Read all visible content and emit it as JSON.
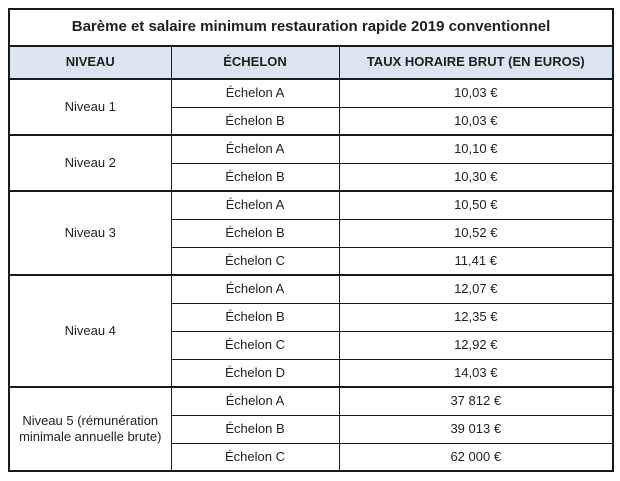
{
  "table": {
    "title": "Barème et salaire minimum restauration rapide 2019 conventionnel",
    "header": {
      "niveau": "NIVEAU",
      "echelon": "ÉCHELON",
      "taux": "TAUX HORAIRE BRUT (EN EUROS)"
    },
    "groups": [
      {
        "niveau": "Niveau 1",
        "rows": [
          {
            "echelon": "Échelon A",
            "taux": "10,03 €"
          },
          {
            "echelon": "Échelon B",
            "taux": "10,03 €"
          }
        ]
      },
      {
        "niveau": "Niveau 2",
        "rows": [
          {
            "echelon": "Échelon A",
            "taux": "10,10 €"
          },
          {
            "echelon": "Échelon B",
            "taux": "10,30 €"
          }
        ]
      },
      {
        "niveau": "Niveau 3",
        "rows": [
          {
            "echelon": "Échelon A",
            "taux": "10,50 €"
          },
          {
            "echelon": "Échelon B",
            "taux": "10,52 €"
          },
          {
            "echelon": "Échelon C",
            "taux": "11,41 €"
          }
        ]
      },
      {
        "niveau": "Niveau 4",
        "rows": [
          {
            "echelon": "Échelon A",
            "taux": "12,07 €"
          },
          {
            "echelon": "Échelon B",
            "taux": "12,35 €"
          },
          {
            "echelon": "Échelon C",
            "taux": "12,92 €"
          },
          {
            "echelon": "Échelon D",
            "taux": "14,03 €"
          }
        ]
      },
      {
        "niveau": "Niveau 5 (rémunération minimale annuelle brute)",
        "rows": [
          {
            "echelon": "Échelon A",
            "taux": "37 812 €"
          },
          {
            "echelon": "Échelon B",
            "taux": "39 013 €"
          },
          {
            "echelon": "Échelon C",
            "taux": "62 000 €"
          }
        ]
      }
    ]
  },
  "colors": {
    "header_bg": "#dbe5f1",
    "border": "#1a1a1a",
    "text": "#1f1f1f"
  }
}
